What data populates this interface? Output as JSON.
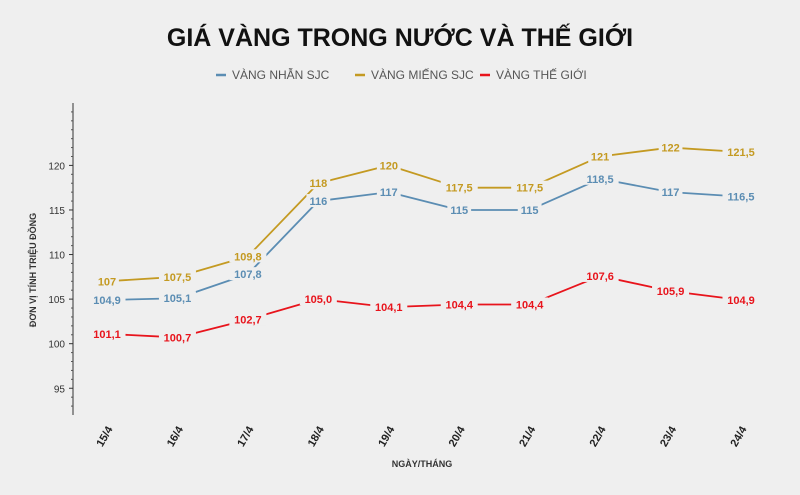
{
  "chart_data": {
    "type": "line",
    "title": "GIÁ VÀNG TRONG NƯỚC VÀ THẾ GIỚI",
    "xlabel": "NGÀY/THÁNG",
    "ylabel": "ĐƠN VỊ TÍNH TRIỆU ĐỒNG",
    "categories": [
      "15/4",
      "16/4",
      "17/4",
      "18/4",
      "19/4",
      "20/4",
      "21/4",
      "22/4",
      "23/4",
      "24/4"
    ],
    "ylim": [
      92,
      127
    ],
    "yticks": [
      95,
      100,
      105,
      110,
      115,
      120
    ],
    "grid": false,
    "legend_position": "top-center",
    "series": [
      {
        "name": "VÀNG NHẪN SJC",
        "color": "#5b8db3",
        "values": [
          104.9,
          105.1,
          107.8,
          116,
          117,
          115,
          115,
          118.5,
          117,
          116.5
        ],
        "labels": [
          "104,9",
          "105,1",
          "107,8",
          "116",
          "117",
          "115",
          "115",
          "118,5",
          "117",
          "116,5"
        ]
      },
      {
        "name": "VÀNG MIẾNG SJC",
        "color": "#c49a22",
        "values": [
          107,
          107.5,
          109.8,
          118,
          120,
          117.5,
          117.5,
          121,
          122,
          121.5
        ],
        "labels": [
          "107",
          "107,5",
          "109,8",
          "118",
          "120",
          "117,5",
          "117,5",
          "121",
          "122",
          "121,5"
        ]
      },
      {
        "name": "VÀNG THẾ GIỚI",
        "color": "#e8141c",
        "values": [
          101.1,
          100.7,
          102.7,
          105.0,
          104.1,
          104.4,
          104.4,
          107.6,
          105.9,
          104.9
        ],
        "labels": [
          "101,1",
          "100,7",
          "102,7",
          "105,0",
          "104,1",
          "104,4",
          "104,4",
          "107,6",
          "105,9",
          "104,9"
        ]
      }
    ]
  }
}
